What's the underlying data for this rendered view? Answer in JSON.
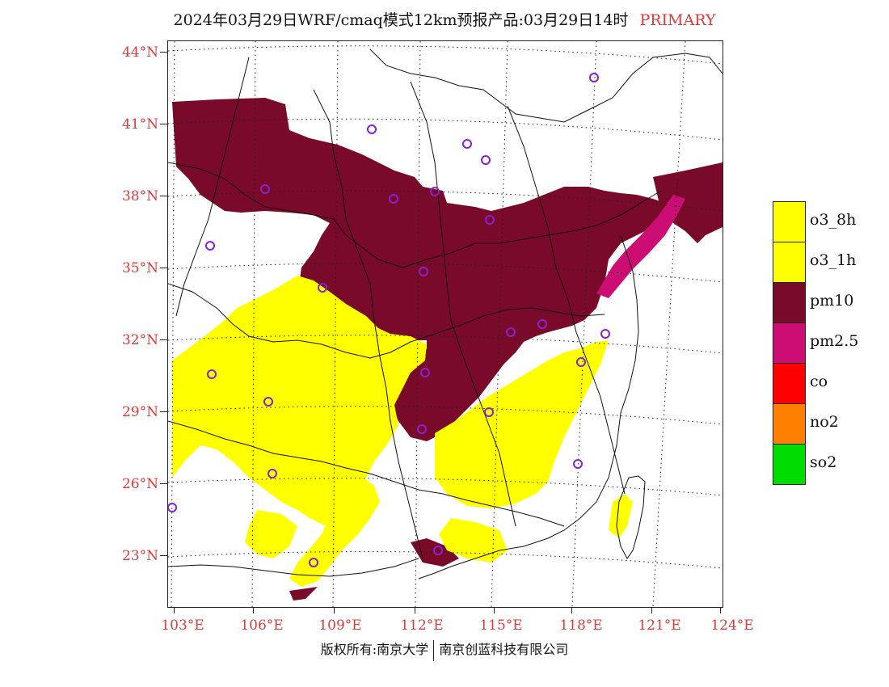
{
  "title": {
    "text": "2024年03月29日WRF/cmaq模式12km预报产品:03月29日14时",
    "tag": "PRIMARY"
  },
  "map": {
    "lat_labels": [
      "44°N",
      "41°N",
      "38°N",
      "35°N",
      "32°N",
      "29°N",
      "26°N",
      "23°N"
    ],
    "lon_labels": [
      "103°E",
      "106°E",
      "109°E",
      "112°E",
      "115°E",
      "118°E",
      "121°E",
      "124°E"
    ],
    "colors": {
      "pm10": "#7a0a2a",
      "pm2_5": "#cc0d74",
      "o3": "#ffff00",
      "boundary": "#111111",
      "station": "#8a1fd6",
      "grid": "#222222"
    }
  },
  "legend": [
    {
      "label": "o3_8h",
      "color": "#ffff00"
    },
    {
      "label": "o3_1h",
      "color": "#ffff00"
    },
    {
      "label": "pm10",
      "color": "#7a0a2a"
    },
    {
      "label": "pm2.5",
      "color": "#cc0d74"
    },
    {
      "label": "co",
      "color": "#ff0000"
    },
    {
      "label": "no2",
      "color": "#ff7f00"
    },
    {
      "label": "so2",
      "color": "#00dd00"
    }
  ],
  "footer": {
    "left": "版权所有:南京大学",
    "right": "南京创蓝科技有限公司"
  }
}
